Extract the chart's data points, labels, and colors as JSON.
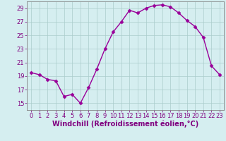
{
  "hours": [
    0,
    1,
    2,
    3,
    4,
    5,
    6,
    7,
    8,
    9,
    10,
    11,
    12,
    13,
    14,
    15,
    16,
    17,
    18,
    19,
    20,
    21,
    22,
    23
  ],
  "values": [
    19.5,
    19.2,
    18.5,
    18.3,
    16.0,
    16.3,
    15.0,
    17.3,
    20.0,
    23.0,
    25.5,
    27.0,
    28.7,
    28.3,
    29.0,
    29.4,
    29.5,
    29.2,
    28.3,
    27.2,
    26.3,
    24.7,
    20.5,
    19.2
  ],
  "line_color": "#990099",
  "marker": "D",
  "marker_size": 2.5,
  "line_width": 1.0,
  "bg_color": "#d5eef0",
  "grid_color": "#aacccc",
  "xlabel": "Windchill (Refroidissement éolien,°C)",
  "xlabel_color": "#800080",
  "xlabel_fontsize": 7.0,
  "tick_color": "#800080",
  "tick_fontsize": 6.0,
  "spine_color": "#808080",
  "ylim": [
    14.0,
    30.0
  ],
  "xlim": [
    -0.5,
    23.5
  ],
  "yticks": [
    15,
    17,
    19,
    21,
    23,
    25,
    27,
    29
  ],
  "xticks": [
    0,
    1,
    2,
    3,
    4,
    5,
    6,
    7,
    8,
    9,
    10,
    11,
    12,
    13,
    14,
    15,
    16,
    17,
    18,
    19,
    20,
    21,
    22,
    23
  ]
}
